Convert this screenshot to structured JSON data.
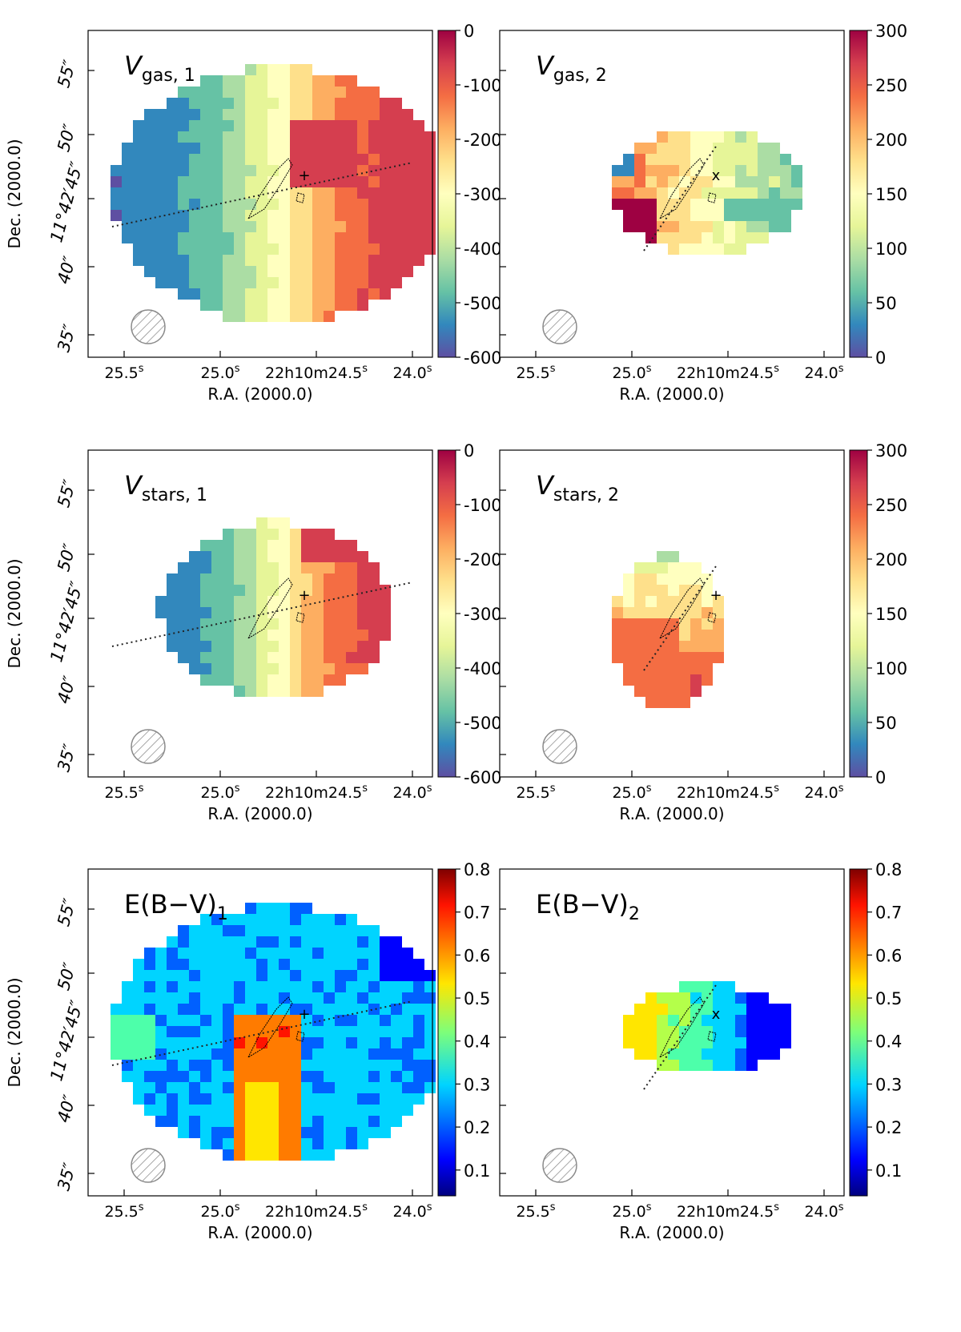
{
  "figure": {
    "axis_labels": {
      "x": "R.A. (2000.0)",
      "y": "Dec. (2000.0)"
    },
    "x_ticks": [
      "25.5",
      "25.0",
      "22h10m24.5",
      "24.0"
    ],
    "x_tick_suffix": "s",
    "y_ticks": [
      "55″",
      "50″",
      "11°42′45″",
      "40″",
      "35″"
    ],
    "beam_symbol": "hatched-circle",
    "contour_color": "#000000"
  },
  "chart_data": [
    {
      "type": "heatmap",
      "panel": "gas-velocity-component-1",
      "title": "V",
      "title_sub": "gas, 1",
      "colormap": "Spectral_r",
      "colorbar_ticks": [
        "0",
        "-100",
        "-200",
        "-300",
        "-400",
        "-500",
        "-600"
      ],
      "value_range": [
        -600,
        0
      ],
      "field_description": "velocity gradient: blue/green to east (left), orange/red to west (right)",
      "xlabel": "R.A. (2000.0)",
      "ylabel": "Dec. (2000.0)",
      "marker": "+",
      "axis_line": "dotted"
    },
    {
      "type": "heatmap",
      "panel": "gas-velocity-component-2",
      "title": "V",
      "title_sub": "gas, 2",
      "colormap": "Spectral_r",
      "colorbar_ticks": [
        "300",
        "250",
        "200",
        "150",
        "100",
        "50",
        "0"
      ],
      "value_range": [
        0,
        300
      ],
      "xlabel": "R.A. (2000.0)",
      "ylabel": "",
      "marker": "x",
      "axis_line": "dotted"
    },
    {
      "type": "heatmap",
      "panel": "stellar-velocity-component-1",
      "title": "V",
      "title_sub": "stars, 1",
      "colormap": "Spectral_r",
      "colorbar_ticks": [
        "0",
        "-100",
        "-200",
        "-300",
        "-400",
        "-500",
        "-600"
      ],
      "value_range": [
        -600,
        0
      ],
      "xlabel": "R.A. (2000.0)",
      "ylabel": "Dec. (2000.0)",
      "marker": "+",
      "axis_line": "dotted"
    },
    {
      "type": "heatmap",
      "panel": "stellar-velocity-component-2",
      "title": "V",
      "title_sub": "stars, 2",
      "colormap": "Spectral_r",
      "colorbar_ticks": [
        "300",
        "250",
        "200",
        "150",
        "100",
        "50",
        "0"
      ],
      "value_range": [
        0,
        300
      ],
      "xlabel": "R.A. (2000.0)",
      "ylabel": "",
      "marker": "+",
      "axis_line": "dotted"
    },
    {
      "type": "heatmap",
      "panel": "color-excess-component-1",
      "title": "E(B−V)",
      "title_sub": "1",
      "colormap": "jet",
      "colorbar_ticks": [
        "0.8",
        "0.7",
        "0.6",
        "0.5",
        "0.4",
        "0.3",
        "0.2",
        "0.1"
      ],
      "value_range": [
        0.04,
        0.8
      ],
      "xlabel": "R.A. (2000.0)",
      "ylabel": "Dec. (2000.0)",
      "marker": "+",
      "axis_line": "dotted"
    },
    {
      "type": "heatmap",
      "panel": "color-excess-component-2",
      "title": "E(B−V)",
      "title_sub": "2",
      "colormap": "jet",
      "colorbar_ticks": [
        "0.8",
        "0.7",
        "0.6",
        "0.5",
        "0.4",
        "0.3",
        "0.2",
        "0.1"
      ],
      "value_range": [
        0.04,
        0.8
      ],
      "xlabel": "R.A. (2000.0)",
      "ylabel": "",
      "marker": "x",
      "axis_line": "dotted"
    }
  ]
}
